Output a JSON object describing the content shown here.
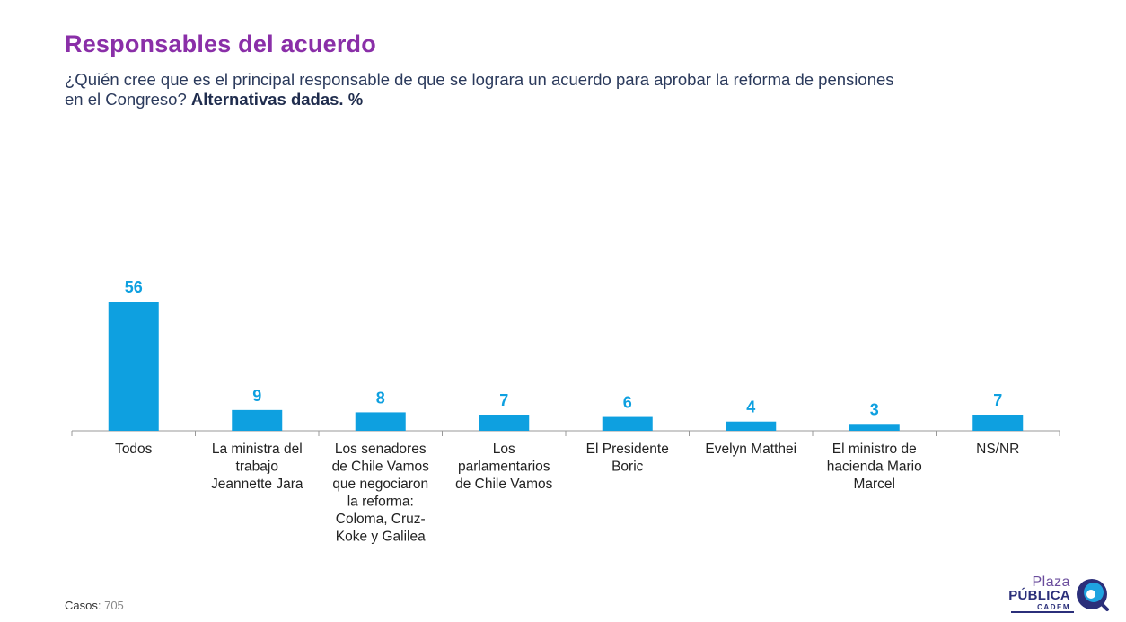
{
  "header": {
    "title": "Responsables del acuerdo",
    "subtitle_main": "¿Quién cree que es el principal responsable de que se lograra un acuerdo para aprobar la reforma de pensiones en el Congreso?",
    "subtitle_bold": "Alternativas dadas. %"
  },
  "footer": {
    "cases_label": "Casos",
    "cases_value": ": 705"
  },
  "logo": {
    "line1": "Plaza",
    "line2": "PÚBLICA",
    "line3": "CADEM"
  },
  "colors": {
    "bar": "#0ea0e0",
    "value_label": "#0ea0e0",
    "title": "#8a2fa8",
    "axis": "#999999",
    "category_text": "#222222"
  },
  "chart_data": {
    "type": "bar",
    "categories": [
      [
        "Todos"
      ],
      [
        "La ministra del",
        "trabajo",
        "Jeannette Jara"
      ],
      [
        "Los senadores",
        "de Chile Vamos",
        "que negociaron",
        "la reforma:",
        "Coloma, Cruz-",
        "Koke y Galilea"
      ],
      [
        "Los",
        "parlamentarios",
        "de Chile Vamos"
      ],
      [
        "El Presidente",
        "Boric"
      ],
      [
        "Evelyn Matthei"
      ],
      [
        "El ministro de",
        "hacienda Mario",
        "Marcel"
      ],
      [
        "NS/NR"
      ]
    ],
    "values": [
      56,
      9,
      8,
      7,
      6,
      4,
      3,
      7
    ],
    "data_labels": [
      "56",
      "9",
      "8",
      "7",
      "6",
      "4",
      "3",
      "7"
    ],
    "ylim": [
      0,
      56
    ],
    "grid": false,
    "legend": "none"
  }
}
